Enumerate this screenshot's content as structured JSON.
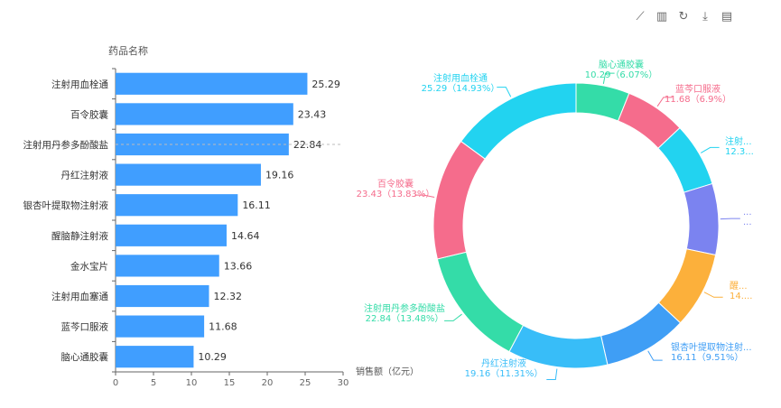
{
  "toolbox": {
    "icons": [
      {
        "name": "line-chart-icon",
        "glyph": "⟋"
      },
      {
        "name": "bar-chart-icon",
        "glyph": "▥"
      },
      {
        "name": "restore-icon",
        "glyph": "↻"
      },
      {
        "name": "download-icon",
        "glyph": "⤓"
      },
      {
        "name": "data-view-icon",
        "glyph": "▤"
      }
    ]
  },
  "chart_data": [
    {
      "type": "bar",
      "orientation": "horizontal",
      "ylabel": "药品名称",
      "xlabel": "销售额（亿元）",
      "xlim": [
        0,
        30
      ],
      "xticks": [
        0,
        5,
        10,
        15,
        20,
        25,
        30
      ],
      "categories": [
        "注射用血栓通",
        "百令胶囊",
        "注射用丹参多酚酸盐",
        "丹红注射液",
        "银杏叶提取物注射液",
        "醒脑静注射液",
        "金水宝片",
        "注射用血塞通",
        "蓝芩口服液",
        "脑心通胶囊"
      ],
      "values": [
        25.29,
        23.43,
        22.84,
        19.16,
        16.11,
        14.64,
        13.66,
        12.32,
        11.68,
        10.29
      ],
      "data_labels": [
        "25.29",
        "23.43",
        "22.84",
        "19.16",
        "16.11",
        "14.64",
        "13.66",
        "12.32",
        "11.68",
        "10.29"
      ],
      "color": "#409EFF"
    },
    {
      "type": "pie",
      "variant": "donut",
      "slices": [
        {
          "name": "脑心通胶囊",
          "value": 10.29,
          "percent": 6.07,
          "color": "#34DCA8",
          "label_lines": [
            "脑心通胶囊",
            "10.29（6.07%）"
          ]
        },
        {
          "name": "蓝芩口服液",
          "value": 11.68,
          "percent": 6.9,
          "color": "#F56C8C",
          "label_lines": [
            "蓝芩口服液",
            "11.68（6.9%）"
          ]
        },
        {
          "name": "注射用血塞通",
          "value": 12.32,
          "percent": 7.27,
          "color": "#22D3F0",
          "label_lines": [
            "注射...",
            "12.3..."
          ]
        },
        {
          "name": "金水宝片",
          "value": 13.66,
          "percent": 8.06,
          "color": "#7B83F0",
          "label_lines": [
            "...",
            "..."
          ]
        },
        {
          "name": "醒脑静注射液",
          "value": 14.64,
          "percent": 8.64,
          "color": "#FCB03B",
          "label_lines": [
            "醒...",
            "14...."
          ]
        },
        {
          "name": "银杏叶提取物注射液",
          "value": 16.11,
          "percent": 9.51,
          "color": "#3F9EF5",
          "label_lines": [
            "银杏叶提取物注射...",
            "16.11（9.51%）"
          ]
        },
        {
          "name": "丹红注射液",
          "value": 19.16,
          "percent": 11.31,
          "color": "#38BDF8",
          "label_lines": [
            "丹红注射液",
            "19.16（11.31%）"
          ]
        },
        {
          "name": "注射用丹参多酚酸盐",
          "value": 22.84,
          "percent": 13.48,
          "color": "#34DCA8",
          "label_lines": [
            "注射用丹参多酚酸盐",
            "22.84（13.48%）"
          ]
        },
        {
          "name": "百令胶囊",
          "value": 23.43,
          "percent": 13.83,
          "color": "#F56C8C",
          "label_lines": [
            "百令胶囊",
            "23.43（13.83%）"
          ]
        },
        {
          "name": "注射用血栓通",
          "value": 25.29,
          "percent": 14.93,
          "color": "#22D3F0",
          "label_lines": [
            "注射用血栓通",
            "25.29（14.93%）"
          ]
        }
      ]
    }
  ]
}
